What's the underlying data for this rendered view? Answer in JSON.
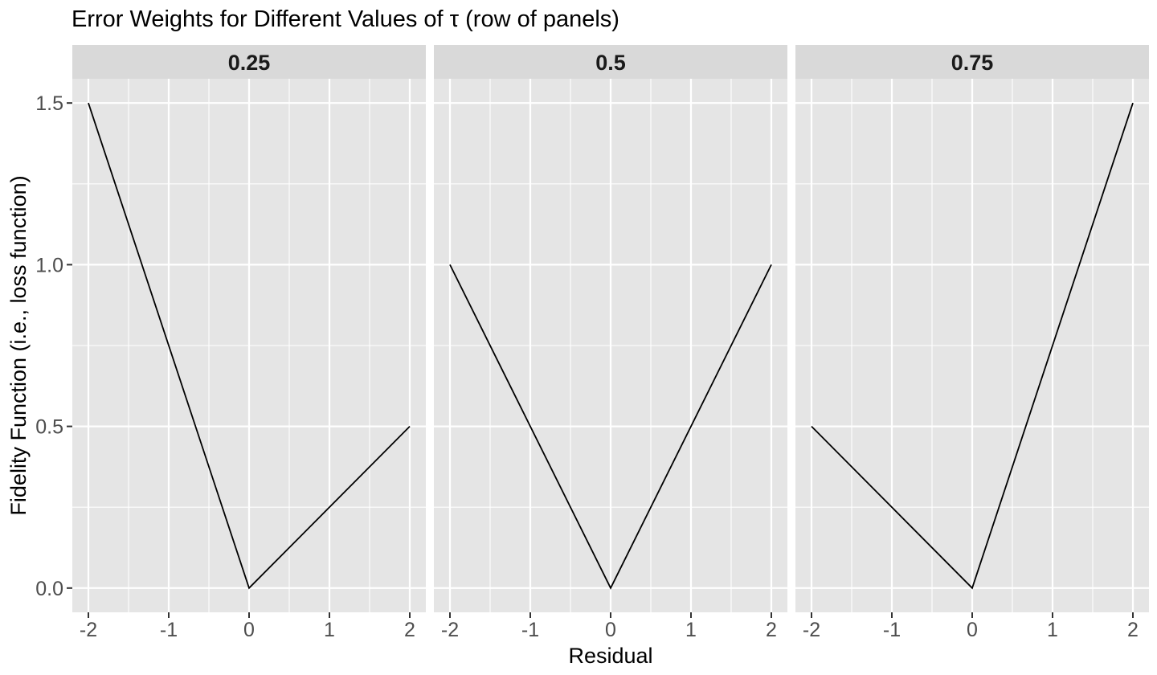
{
  "chart_data": {
    "type": "line",
    "title": "Error Weights for Different Values of τ (row of panels)",
    "xlabel": "Residual",
    "ylabel": "Fidelity Function (i.e., loss function)",
    "xlim": [
      -2.2,
      2.2
    ],
    "ylim": [
      -0.075,
      1.575
    ],
    "x_ticks": [
      -2,
      -1,
      0,
      1,
      2
    ],
    "x_tick_labels": [
      "-2",
      "-1",
      "0",
      "1",
      "2"
    ],
    "y_ticks": [
      0,
      0.5,
      1,
      1.5
    ],
    "y_tick_labels": [
      "0.0",
      "0.5",
      "1.0",
      "1.5"
    ],
    "grid": true,
    "panels": [
      {
        "label": "0.25",
        "x": [
          -2,
          0,
          2
        ],
        "y": [
          1.5,
          0,
          0.5
        ]
      },
      {
        "label": "0.5",
        "x": [
          -2,
          0,
          2
        ],
        "y": [
          1.0,
          0,
          1.0
        ]
      },
      {
        "label": "0.75",
        "x": [
          -2,
          0,
          2
        ],
        "y": [
          0.5,
          0,
          1.5
        ]
      }
    ],
    "colors": {
      "panel_background": "#e5e5e5",
      "strip_background": "#d9d9d9",
      "grid": "#ffffff",
      "line": "#000000"
    }
  }
}
